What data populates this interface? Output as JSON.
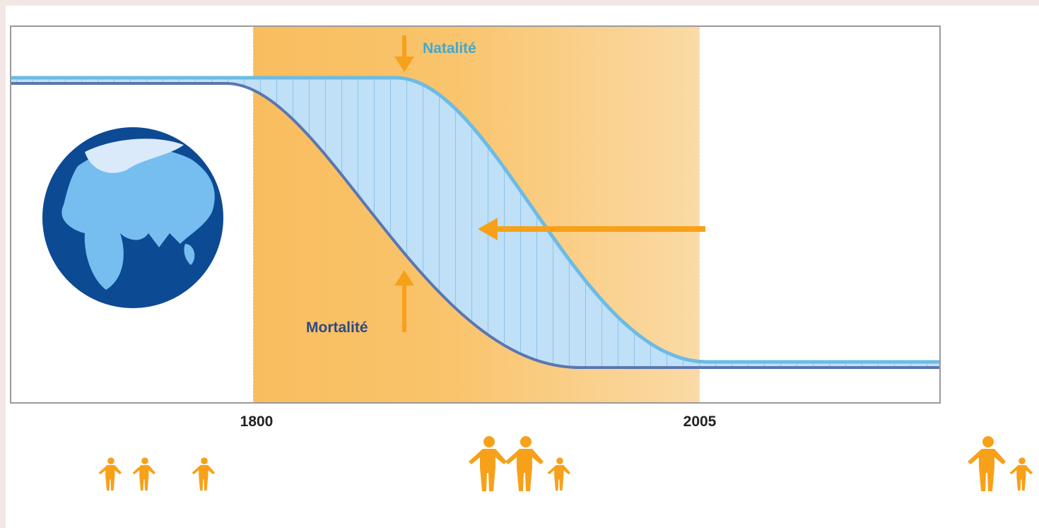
{
  "curves": {
    "birth": "Natalité",
    "death": "Mortalité"
  },
  "years": [
    "1800",
    "2005"
  ]
}
